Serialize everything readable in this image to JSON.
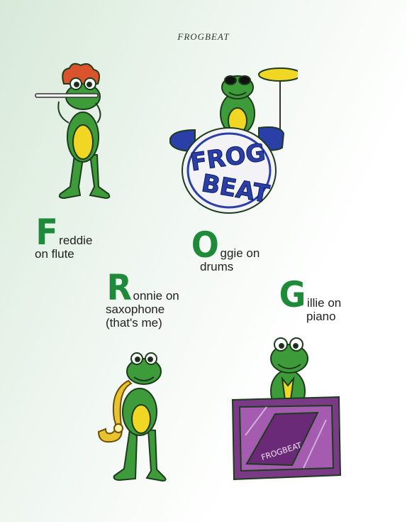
{
  "title": "FROGBEAT",
  "members": {
    "freddie": {
      "initial": "F",
      "line1": "reddie",
      "line2": "on flute"
    },
    "oggie": {
      "initial": "O",
      "line1": "ggie on",
      "line2": "drums"
    },
    "ronnie": {
      "initial": "R",
      "line1": "onnie on",
      "line2": "saxophone",
      "line3": "(that's me)"
    },
    "gillie": {
      "initial": "G",
      "line1": "illie on",
      "line2": "piano"
    }
  },
  "drum_logo": {
    "word1": "FROG",
    "word2": "BEAT"
  },
  "piano_logo": "FROGBEAT",
  "colors": {
    "frog_green": "#3e9b3a",
    "belly_yellow": "#f2d624",
    "letter_green": "#1f8a3a",
    "drum_blue": "#2a3fa8",
    "piano_purple": "#7a3a86"
  }
}
